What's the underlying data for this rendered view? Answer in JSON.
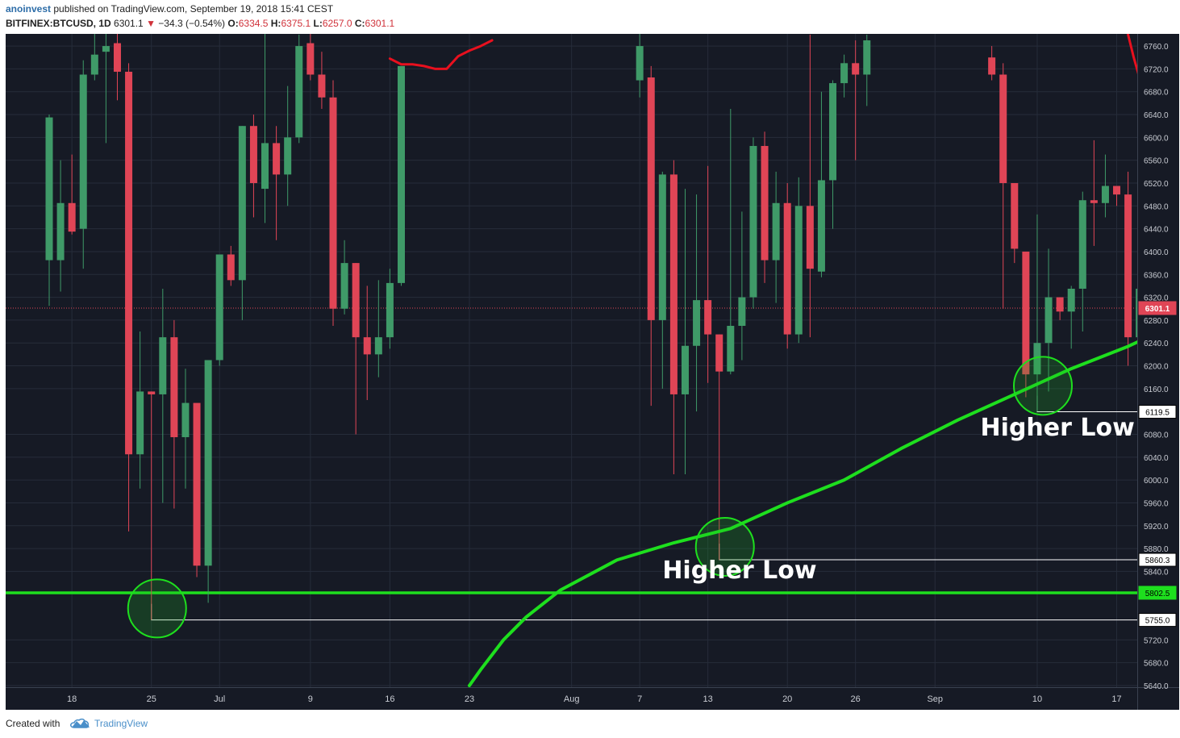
{
  "header": {
    "author": "anoinvest",
    "published": "published on TradingView.com, September 19, 2018 15:41 CEST",
    "symbol": "BITFINEX:BTCUSD, 1D",
    "last": "6301.1",
    "change": "−34.3 (−0.54%)",
    "o_label": "O:",
    "o_value": "6334.5",
    "h_label": "H:",
    "h_value": "6375.1",
    "l_label": "L:",
    "l_value": "6257.0",
    "c_label": "C:",
    "c_value": "6301.1"
  },
  "footer": {
    "created_with": "Created with",
    "tradingview": "TradingView"
  },
  "colors": {
    "background": "#161a25",
    "grid": "#262c3a",
    "up": "#3f9a68",
    "down": "#e04556",
    "support": "#1edf1e",
    "ma": "#e8101e",
    "price_line": "#e04556"
  },
  "chart_data": {
    "type": "candlestick",
    "ylim": [
      5640,
      6770
    ],
    "y_ticks": [
      "6760.0",
      "6720.0",
      "6680.0",
      "6640.0",
      "6600.0",
      "6560.0",
      "6520.0",
      "6480.0",
      "6440.0",
      "6400.0",
      "6360.0",
      "6320.0",
      "6280.0",
      "6240.0",
      "6200.0",
      "6160.0",
      "6080.0",
      "6040.0",
      "6000.0",
      "5960.0",
      "5920.0",
      "5880.0",
      "5840.0",
      "5720.0",
      "5680.0",
      "5640.0"
    ],
    "x_ticks": [
      {
        "label": "18",
        "day": 2
      },
      {
        "label": "25",
        "day": 9
      },
      {
        "label": "Jul",
        "day": 15
      },
      {
        "label": "9",
        "day": 23
      },
      {
        "label": "16",
        "day": 30
      },
      {
        "label": "23",
        "day": 37
      },
      {
        "label": "Aug",
        "day": 46
      },
      {
        "label": "7",
        "day": 52
      },
      {
        "label": "13",
        "day": 58
      },
      {
        "label": "20",
        "day": 65
      },
      {
        "label": "26",
        "day": 71
      },
      {
        "label": "Sep",
        "day": 78
      },
      {
        "label": "10",
        "day": 87
      },
      {
        "label": "17",
        "day": 94
      }
    ],
    "candles": [
      {
        "day": 0,
        "o": 6385,
        "h": 6640,
        "l": 6305,
        "c": 6635
      },
      {
        "day": 1,
        "o": 6385,
        "h": 6560,
        "l": 6330,
        "c": 6485
      },
      {
        "day": 2,
        "o": 6485,
        "h": 6570,
        "l": 6430,
        "c": 6435
      },
      {
        "day": 3,
        "o": 6440,
        "h": 6735,
        "l": 6370,
        "c": 6710
      },
      {
        "day": 4,
        "o": 6710,
        "h": 6840,
        "l": 6700,
        "c": 6745
      },
      {
        "day": 5,
        "o": 6750,
        "h": 6860,
        "l": 6590,
        "c": 6760
      },
      {
        "day": 6,
        "o": 6765,
        "h": 6840,
        "l": 6665,
        "c": 6715
      },
      {
        "day": 7,
        "o": 6715,
        "h": 6730,
        "l": 5910,
        "c": 6045
      },
      {
        "day": 8,
        "o": 6045,
        "h": 6260,
        "l": 5985,
        "c": 6155
      },
      {
        "day": 9,
        "o": 6155,
        "h": 6155,
        "l": 5755,
        "c": 6150
      },
      {
        "day": 10,
        "o": 6150,
        "h": 6335,
        "l": 5960,
        "c": 6250
      },
      {
        "day": 11,
        "o": 6250,
        "h": 6280,
        "l": 5950,
        "c": 6075
      },
      {
        "day": 12,
        "o": 6075,
        "h": 6195,
        "l": 5985,
        "c": 6135
      },
      {
        "day": 13,
        "o": 6135,
        "h": 6130,
        "l": 5830,
        "c": 5850
      },
      {
        "day": 14,
        "o": 5850,
        "h": 6210,
        "l": 5785,
        "c": 6210
      },
      {
        "day": 15,
        "o": 6210,
        "h": 6395,
        "l": 6200,
        "c": 6395
      },
      {
        "day": 16,
        "o": 6395,
        "h": 6410,
        "l": 6340,
        "c": 6350
      },
      {
        "day": 17,
        "o": 6350,
        "h": 6620,
        "l": 6280,
        "c": 6620
      },
      {
        "day": 18,
        "o": 6620,
        "h": 6640,
        "l": 6460,
        "c": 6520
      },
      {
        "day": 19,
        "o": 6510,
        "h": 6820,
        "l": 6450,
        "c": 6590
      },
      {
        "day": 20,
        "o": 6590,
        "h": 6620,
        "l": 6420,
        "c": 6535
      },
      {
        "day": 21,
        "o": 6535,
        "h": 6690,
        "l": 6480,
        "c": 6600
      },
      {
        "day": 22,
        "o": 6600,
        "h": 6780,
        "l": 6590,
        "c": 6760
      },
      {
        "day": 23,
        "o": 6765,
        "h": 6830,
        "l": 6700,
        "c": 6710
      },
      {
        "day": 24,
        "o": 6710,
        "h": 6750,
        "l": 6650,
        "c": 6670
      },
      {
        "day": 25,
        "o": 6670,
        "h": 6700,
        "l": 6270,
        "c": 6300
      },
      {
        "day": 26,
        "o": 6300,
        "h": 6420,
        "l": 6290,
        "c": 6380
      },
      {
        "day": 27,
        "o": 6380,
        "h": 6380,
        "l": 6080,
        "c": 6250
      },
      {
        "day": 28,
        "o": 6250,
        "h": 6340,
        "l": 6140,
        "c": 6220
      },
      {
        "day": 29,
        "o": 6220,
        "h": 6350,
        "l": 6180,
        "c": 6250
      },
      {
        "day": 30,
        "o": 6250,
        "h": 6370,
        "l": 6230,
        "c": 6345
      },
      {
        "day": 31,
        "o": 6345,
        "h": 6720,
        "l": 6340,
        "c": 6725
      },
      {
        "day": 52,
        "o": 6700,
        "h": 6870,
        "l": 6670,
        "c": 6760
      },
      {
        "day": 53,
        "o": 6705,
        "h": 6725,
        "l": 6130,
        "c": 6280
      },
      {
        "day": 54,
        "o": 6280,
        "h": 6540,
        "l": 6160,
        "c": 6535
      },
      {
        "day": 55,
        "o": 6535,
        "h": 6560,
        "l": 6010,
        "c": 6150
      },
      {
        "day": 56,
        "o": 6150,
        "h": 6510,
        "l": 6010,
        "c": 6235
      },
      {
        "day": 57,
        "o": 6235,
        "h": 6500,
        "l": 6120,
        "c": 6315
      },
      {
        "day": 58,
        "o": 6315,
        "h": 6550,
        "l": 6170,
        "c": 6255
      },
      {
        "day": 59,
        "o": 6255,
        "h": 6255,
        "l": 5860,
        "c": 6190
      },
      {
        "day": 60,
        "o": 6190,
        "h": 6650,
        "l": 6185,
        "c": 6270
      },
      {
        "day": 61,
        "o": 6270,
        "h": 6470,
        "l": 6210,
        "c": 6320
      },
      {
        "day": 62,
        "o": 6320,
        "h": 6600,
        "l": 6300,
        "c": 6585
      },
      {
        "day": 63,
        "o": 6585,
        "h": 6610,
        "l": 6345,
        "c": 6385
      },
      {
        "day": 64,
        "o": 6385,
        "h": 6540,
        "l": 6310,
        "c": 6485
      },
      {
        "day": 65,
        "o": 6485,
        "h": 6520,
        "l": 6230,
        "c": 6255
      },
      {
        "day": 66,
        "o": 6255,
        "h": 6530,
        "l": 6240,
        "c": 6480
      },
      {
        "day": 67,
        "o": 6480,
        "h": 6780,
        "l": 6250,
        "c": 6370
      },
      {
        "day": 68,
        "o": 6365,
        "h": 6680,
        "l": 6355,
        "c": 6525
      },
      {
        "day": 69,
        "o": 6525,
        "h": 6700,
        "l": 6440,
        "c": 6695
      },
      {
        "day": 70,
        "o": 6695,
        "h": 6745,
        "l": 6670,
        "c": 6730
      },
      {
        "day": 71,
        "o": 6730,
        "h": 6770,
        "l": 6560,
        "c": 6710
      },
      {
        "day": 72,
        "o": 6710,
        "h": 6780,
        "l": 6655,
        "c": 6770
      },
      {
        "day": 83,
        "o": 6740,
        "h": 6760,
        "l": 6700,
        "c": 6710
      },
      {
        "day": 84,
        "o": 6710,
        "h": 6730,
        "l": 6300,
        "c": 6520
      },
      {
        "day": 85,
        "o": 6520,
        "h": 6520,
        "l": 6380,
        "c": 6405
      },
      {
        "day": 86,
        "o": 6400,
        "h": 6400,
        "l": 6145,
        "c": 6185
      },
      {
        "day": 87,
        "o": 6185,
        "h": 6465,
        "l": 6120,
        "c": 6240
      },
      {
        "day": 88,
        "o": 6240,
        "h": 6405,
        "l": 6155,
        "c": 6320
      },
      {
        "day": 89,
        "o": 6320,
        "h": 6320,
        "l": 6280,
        "c": 6295
      },
      {
        "day": 90,
        "o": 6295,
        "h": 6340,
        "l": 6230,
        "c": 6335
      },
      {
        "day": 91,
        "o": 6335,
        "h": 6505,
        "l": 6260,
        "c": 6490
      },
      {
        "day": 92,
        "o": 6490,
        "h": 6595,
        "l": 6410,
        "c": 6485
      },
      {
        "day": 93,
        "o": 6485,
        "h": 6570,
        "l": 6460,
        "c": 6515
      },
      {
        "day": 94,
        "o": 6515,
        "h": 6510,
        "l": 6480,
        "c": 6500
      },
      {
        "day": 95,
        "o": 6500,
        "h": 6540,
        "l": 6200,
        "c": 6250
      },
      {
        "day": 96,
        "o": 6250,
        "h": 6380,
        "l": 6230,
        "c": 6335
      },
      {
        "day": 97,
        "o": 6335,
        "h": 6375,
        "l": 6257,
        "c": 6301
      }
    ],
    "ma_line": [
      {
        "day": 30,
        "y": 6738
      },
      {
        "day": 31,
        "y": 6728
      },
      {
        "day": 32,
        "y": 6728
      },
      {
        "day": 33,
        "y": 6725
      },
      {
        "day": 34,
        "y": 6720
      },
      {
        "day": 35,
        "y": 6720
      },
      {
        "day": 36,
        "y": 6742
      },
      {
        "day": 37,
        "y": 6752
      },
      {
        "day": 38,
        "y": 6760
      },
      {
        "day": 39,
        "y": 6770
      }
    ],
    "ma_line_2": [
      {
        "day": 95,
        "y": 6780
      },
      {
        "day": 95.5,
        "y": 6740
      },
      {
        "day": 96,
        "y": 6705
      },
      {
        "day": 96.6,
        "y": 6675
      },
      {
        "day": 97.3,
        "y": 6640
      }
    ],
    "trendline": [
      {
        "day": 37,
        "y": 5640
      },
      {
        "day": 38,
        "y": 5668
      },
      {
        "day": 40,
        "y": 5720
      },
      {
        "day": 42,
        "y": 5760
      },
      {
        "day": 45,
        "y": 5807
      },
      {
        "day": 50,
        "y": 5860
      },
      {
        "day": 55,
        "y": 5890
      },
      {
        "day": 60,
        "y": 5915
      },
      {
        "day": 65,
        "y": 5960
      },
      {
        "day": 70,
        "y": 6000
      },
      {
        "day": 75,
        "y": 6055
      },
      {
        "day": 80,
        "y": 6105
      },
      {
        "day": 85,
        "y": 6150
      },
      {
        "day": 90,
        "y": 6195
      },
      {
        "day": 95,
        "y": 6234
      },
      {
        "day": 97.5,
        "y": 6257
      }
    ],
    "support_level": 5802.5,
    "price_line": 6301.1,
    "price_labels": [
      {
        "text": "6301.1",
        "value": 6301.1,
        "style": "current"
      },
      {
        "text": "6119.5",
        "value": 6119.5,
        "style": "box"
      },
      {
        "text": "5860.3",
        "value": 5860.3,
        "style": "box"
      },
      {
        "text": "5802.5",
        "value": 5802.5,
        "style": "support"
      },
      {
        "text": "5755.0",
        "value": 5755.0,
        "style": "box"
      }
    ],
    "low_markers": [
      {
        "day": 9,
        "value": 5755.0,
        "to_day": 99
      },
      {
        "day": 59,
        "value": 5860.3,
        "to_day": 99
      },
      {
        "day": 87,
        "value": 6119.5,
        "to_day": 99
      }
    ],
    "circles": [
      {
        "day": 9.5,
        "value": 5775
      },
      {
        "day": 59.5,
        "value": 5883
      },
      {
        "day": 87.5,
        "value": 6165
      }
    ],
    "annotations": [
      {
        "text": "Higher Low",
        "day": 54,
        "value": 5828
      },
      {
        "text": "Higher Low",
        "day": 82,
        "value": 6078
      }
    ]
  }
}
